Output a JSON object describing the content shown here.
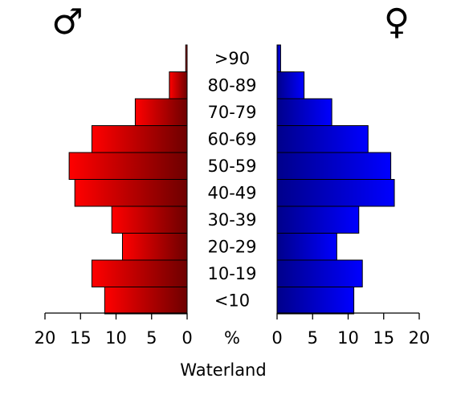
{
  "chart_data": {
    "type": "bar",
    "orientation": "horizontal",
    "layout": "population-pyramid",
    "categories": [
      "<10",
      "10-19",
      "20-29",
      "30-39",
      "40-49",
      "50-59",
      "60-69",
      "70-79",
      "80-89",
      ">90"
    ],
    "series": [
      {
        "symbol": "♂",
        "side": "left",
        "values": [
          11.6,
          13.4,
          9.1,
          10.6,
          15.8,
          16.6,
          13.4,
          7.3,
          2.5,
          0.2
        ],
        "color_start": "#ff0000",
        "color_end": "#6e0000"
      },
      {
        "symbol": "♀",
        "side": "right",
        "values": [
          10.8,
          12.0,
          8.4,
          11.5,
          16.5,
          16.0,
          12.8,
          7.7,
          3.8,
          0.5
        ],
        "color_start": "#00008b",
        "color_end": "#0000ff"
      }
    ],
    "xlim": [
      0,
      20
    ],
    "xticks": [
      "20",
      "15",
      "10",
      "5",
      "0"
    ],
    "xticks_right": [
      "0",
      "5",
      "10",
      "15",
      "20"
    ],
    "center_label": "%",
    "xlabel": "Waterland",
    "grid": false
  }
}
